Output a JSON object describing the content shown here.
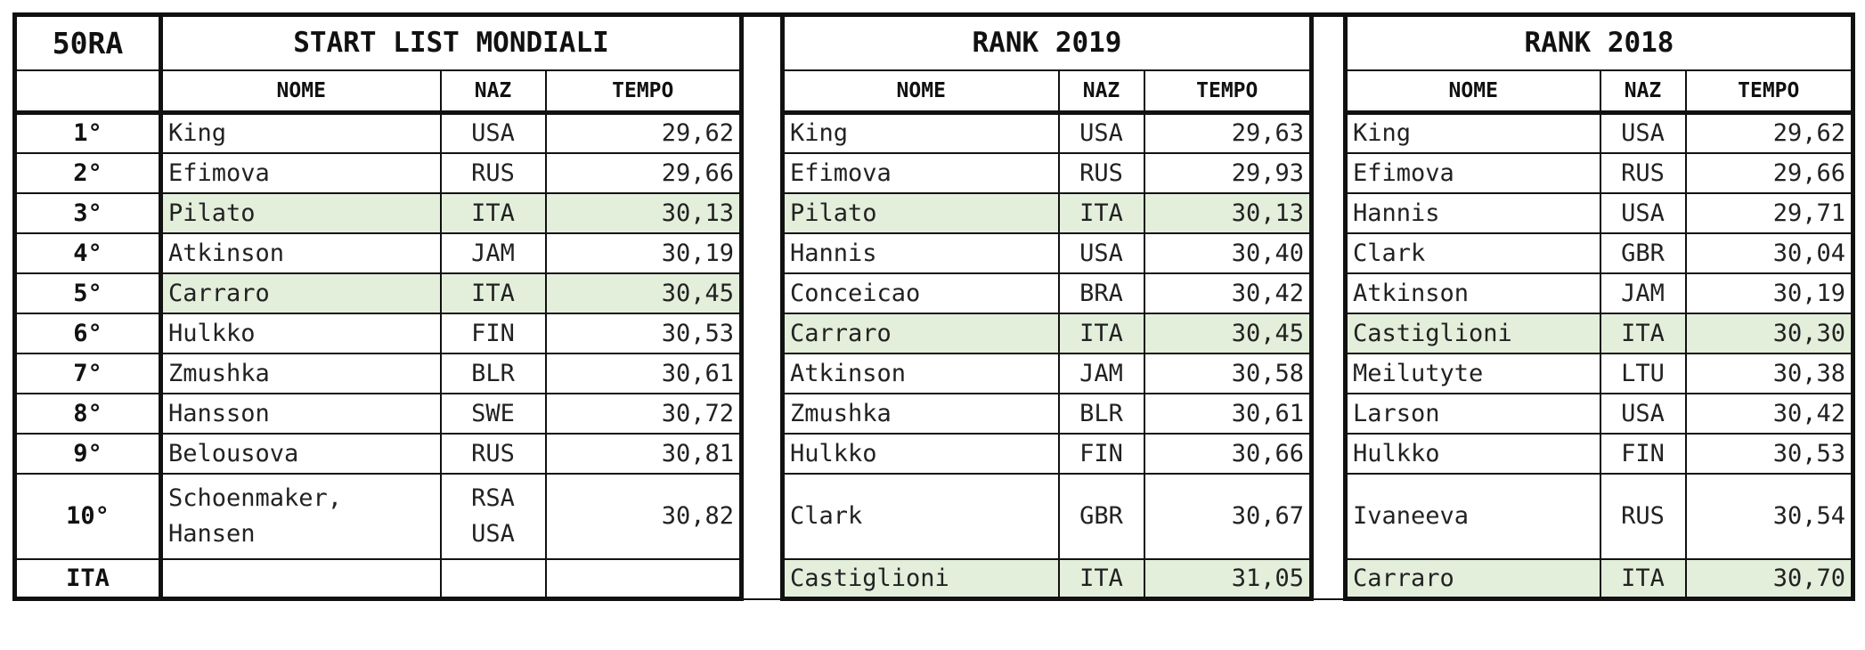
{
  "header": {
    "badge": "50RA",
    "sections": [
      "START LIST MONDIALI",
      "RANK 2019",
      "RANK 2018"
    ],
    "columns": {
      "name": "NOME",
      "nat": "NAZ",
      "time": "TEMPO"
    }
  },
  "highlight_color": "#e3eedb",
  "rows": [
    {
      "rank": "1°",
      "start": {
        "name": "King",
        "nat": "USA",
        "time": "29,62",
        "hl": false
      },
      "r2019": {
        "name": "King",
        "nat": "USA",
        "time": "29,63",
        "hl": false
      },
      "r2018": {
        "name": "King",
        "nat": "USA",
        "time": "29,62",
        "hl": false
      }
    },
    {
      "rank": "2°",
      "start": {
        "name": "Efimova",
        "nat": "RUS",
        "time": "29,66",
        "hl": false
      },
      "r2019": {
        "name": "Efimova",
        "nat": "RUS",
        "time": "29,93",
        "hl": false
      },
      "r2018": {
        "name": "Efimova",
        "nat": "RUS",
        "time": "29,66",
        "hl": false
      }
    },
    {
      "rank": "3°",
      "start": {
        "name": "Pilato",
        "nat": "ITA",
        "time": "30,13",
        "hl": true
      },
      "r2019": {
        "name": "Pilato",
        "nat": "ITA",
        "time": "30,13",
        "hl": true
      },
      "r2018": {
        "name": "Hannis",
        "nat": "USA",
        "time": "29,71",
        "hl": false
      }
    },
    {
      "rank": "4°",
      "start": {
        "name": "Atkinson",
        "nat": "JAM",
        "time": "30,19",
        "hl": false
      },
      "r2019": {
        "name": "Hannis",
        "nat": "USA",
        "time": "30,40",
        "hl": false
      },
      "r2018": {
        "name": "Clark",
        "nat": "GBR",
        "time": "30,04",
        "hl": false
      }
    },
    {
      "rank": "5°",
      "start": {
        "name": "Carraro",
        "nat": "ITA",
        "time": "30,45",
        "hl": true
      },
      "r2019": {
        "name": "Conceicao",
        "nat": "BRA",
        "time": "30,42",
        "hl": false
      },
      "r2018": {
        "name": "Atkinson",
        "nat": "JAM",
        "time": "30,19",
        "hl": false
      }
    },
    {
      "rank": "6°",
      "start": {
        "name": "Hulkko",
        "nat": "FIN",
        "time": "30,53",
        "hl": false
      },
      "r2019": {
        "name": "Carraro",
        "nat": "ITA",
        "time": "30,45",
        "hl": true
      },
      "r2018": {
        "name": "Castiglioni",
        "nat": "ITA",
        "time": "30,30",
        "hl": true
      }
    },
    {
      "rank": "7°",
      "start": {
        "name": "Zmushka",
        "nat": "BLR",
        "time": "30,61",
        "hl": false
      },
      "r2019": {
        "name": "Atkinson",
        "nat": "JAM",
        "time": "30,58",
        "hl": false
      },
      "r2018": {
        "name": "Meilutyte",
        "nat": "LTU",
        "time": "30,38",
        "hl": false
      }
    },
    {
      "rank": "8°",
      "start": {
        "name": "Hansson",
        "nat": "SWE",
        "time": "30,72",
        "hl": false
      },
      "r2019": {
        "name": "Zmushka",
        "nat": "BLR",
        "time": "30,61",
        "hl": false
      },
      "r2018": {
        "name": "Larson",
        "nat": "USA",
        "time": "30,42",
        "hl": false
      }
    },
    {
      "rank": "9°",
      "start": {
        "name": "Belousova",
        "nat": "RUS",
        "time": "30,81",
        "hl": false
      },
      "r2019": {
        "name": "Hulkko",
        "nat": "FIN",
        "time": "30,66",
        "hl": false
      },
      "r2018": {
        "name": "Hulkko",
        "nat": "FIN",
        "time": "30,53",
        "hl": false
      }
    },
    {
      "rank": "10°",
      "start": {
        "name_lines": [
          "Schoenmaker,",
          "Hansen"
        ],
        "nat_lines": [
          "RSA",
          "USA"
        ],
        "time": "30,82",
        "hl": false
      },
      "r2019": {
        "name": "Clark",
        "nat": "GBR",
        "time": "30,67",
        "hl": false
      },
      "r2018": {
        "name": "Ivaneeva",
        "nat": "RUS",
        "time": "30,54",
        "hl": false
      }
    },
    {
      "rank": "ITA",
      "start": {
        "name": "",
        "nat": "",
        "time": "",
        "hl": false
      },
      "r2019": {
        "name": "Castiglioni",
        "nat": "ITA",
        "time": "31,05",
        "hl": true
      },
      "r2018": {
        "name": "Carraro",
        "nat": "ITA",
        "time": "30,70",
        "hl": true
      }
    }
  ]
}
